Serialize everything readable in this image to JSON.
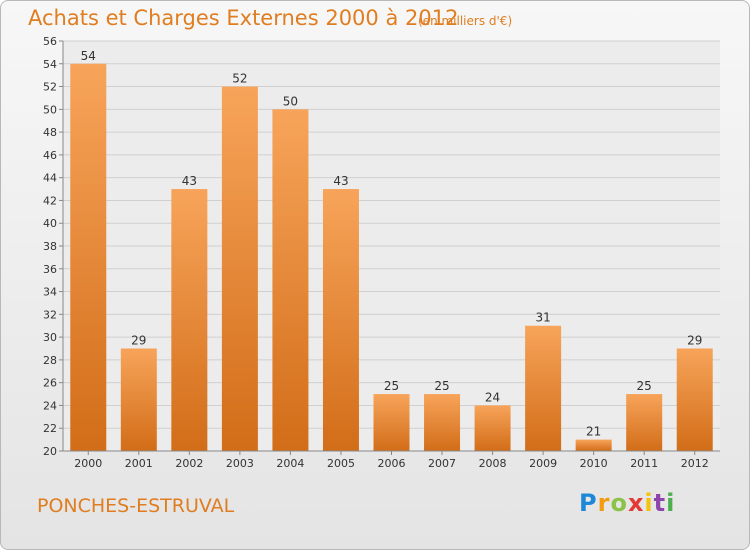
{
  "title": "Achats et Charges Externes 2000 à 2012",
  "unit": "(en milliers d'€)",
  "commune": "PONCHES-ESTRUVAL",
  "logo": {
    "letters": [
      "P",
      "r",
      "o",
      "x",
      "i",
      "t",
      "i"
    ],
    "colors": [
      "#1e88d8",
      "#f39c12",
      "#8bc34a",
      "#e53935",
      "#f1c40f",
      "#8e44ad",
      "#4caf50"
    ]
  },
  "colors": {
    "bar": "#ef8a2a",
    "text": "#e07d20"
  },
  "chart_data": {
    "type": "bar",
    "title": "Achats et Charges Externes 2000 à 2012",
    "ylabel": "",
    "xlabel": "",
    "categories": [
      "2000",
      "2001",
      "2002",
      "2003",
      "2004",
      "2005",
      "2006",
      "2007",
      "2008",
      "2009",
      "2010",
      "2011",
      "2012"
    ],
    "values": [
      54,
      29,
      43,
      52,
      50,
      43,
      25,
      25,
      24,
      31,
      21,
      25,
      29
    ],
    "ylim": [
      20,
      56
    ],
    "yticks": [
      20,
      22,
      24,
      26,
      28,
      30,
      32,
      34,
      36,
      38,
      40,
      42,
      44,
      46,
      48,
      50,
      52,
      54,
      56
    ],
    "grid": true
  }
}
